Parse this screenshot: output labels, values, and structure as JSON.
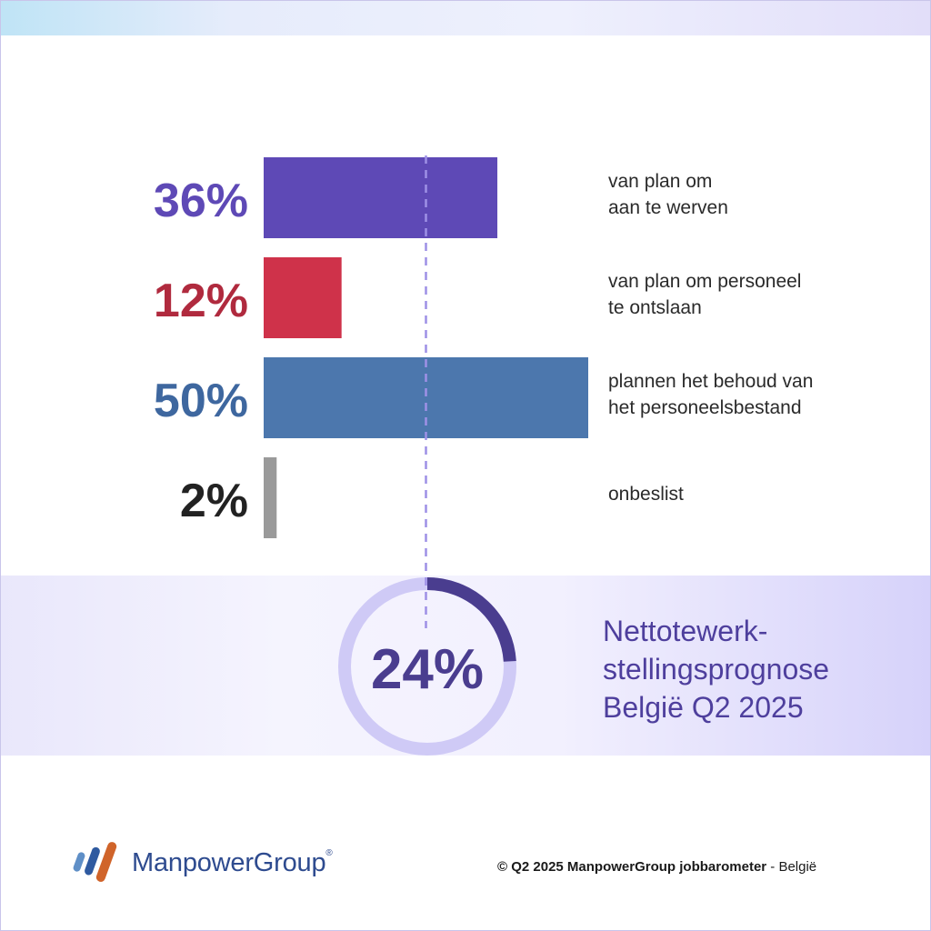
{
  "chart_data": {
    "type": "bar",
    "orientation": "horizontal",
    "categories": [
      "van plan om\naan te werven",
      "van plan om personeel\nte ontslaan",
      "plannen het behoud van\nhet personeelsbestand",
      "onbeslist"
    ],
    "values": [
      36,
      12,
      50,
      2
    ],
    "value_labels": [
      "36%",
      "12%",
      "50%",
      "2%"
    ],
    "colors": [
      "#5e49b6",
      "#cf324a",
      "#4c77ad",
      "#9a9a9a"
    ],
    "label_colors": [
      "#5e49b6",
      "#b02a3e",
      "#3e679f",
      "#222222"
    ],
    "xlim": [
      0,
      50
    ],
    "reference_line_value": 25,
    "reference_line_color": "#9e90e6"
  },
  "net_forecast": {
    "value": 24,
    "value_label": "24%",
    "title": "Nettotewerk-\nstellingsprognose\nBelgië Q2 2025",
    "ring_track_color": "#cfcaf6",
    "ring_fill_color": "#4a3d8f"
  },
  "footer": {
    "logo_text": "ManpowerGroup",
    "logo_reg": "®",
    "copyright_prefix": "© Q2 2025 ManpowerGroup jobbarometer",
    "copyright_suffix": " - België"
  },
  "icons": {
    "logo": "manpowergroup-logo-icon"
  }
}
